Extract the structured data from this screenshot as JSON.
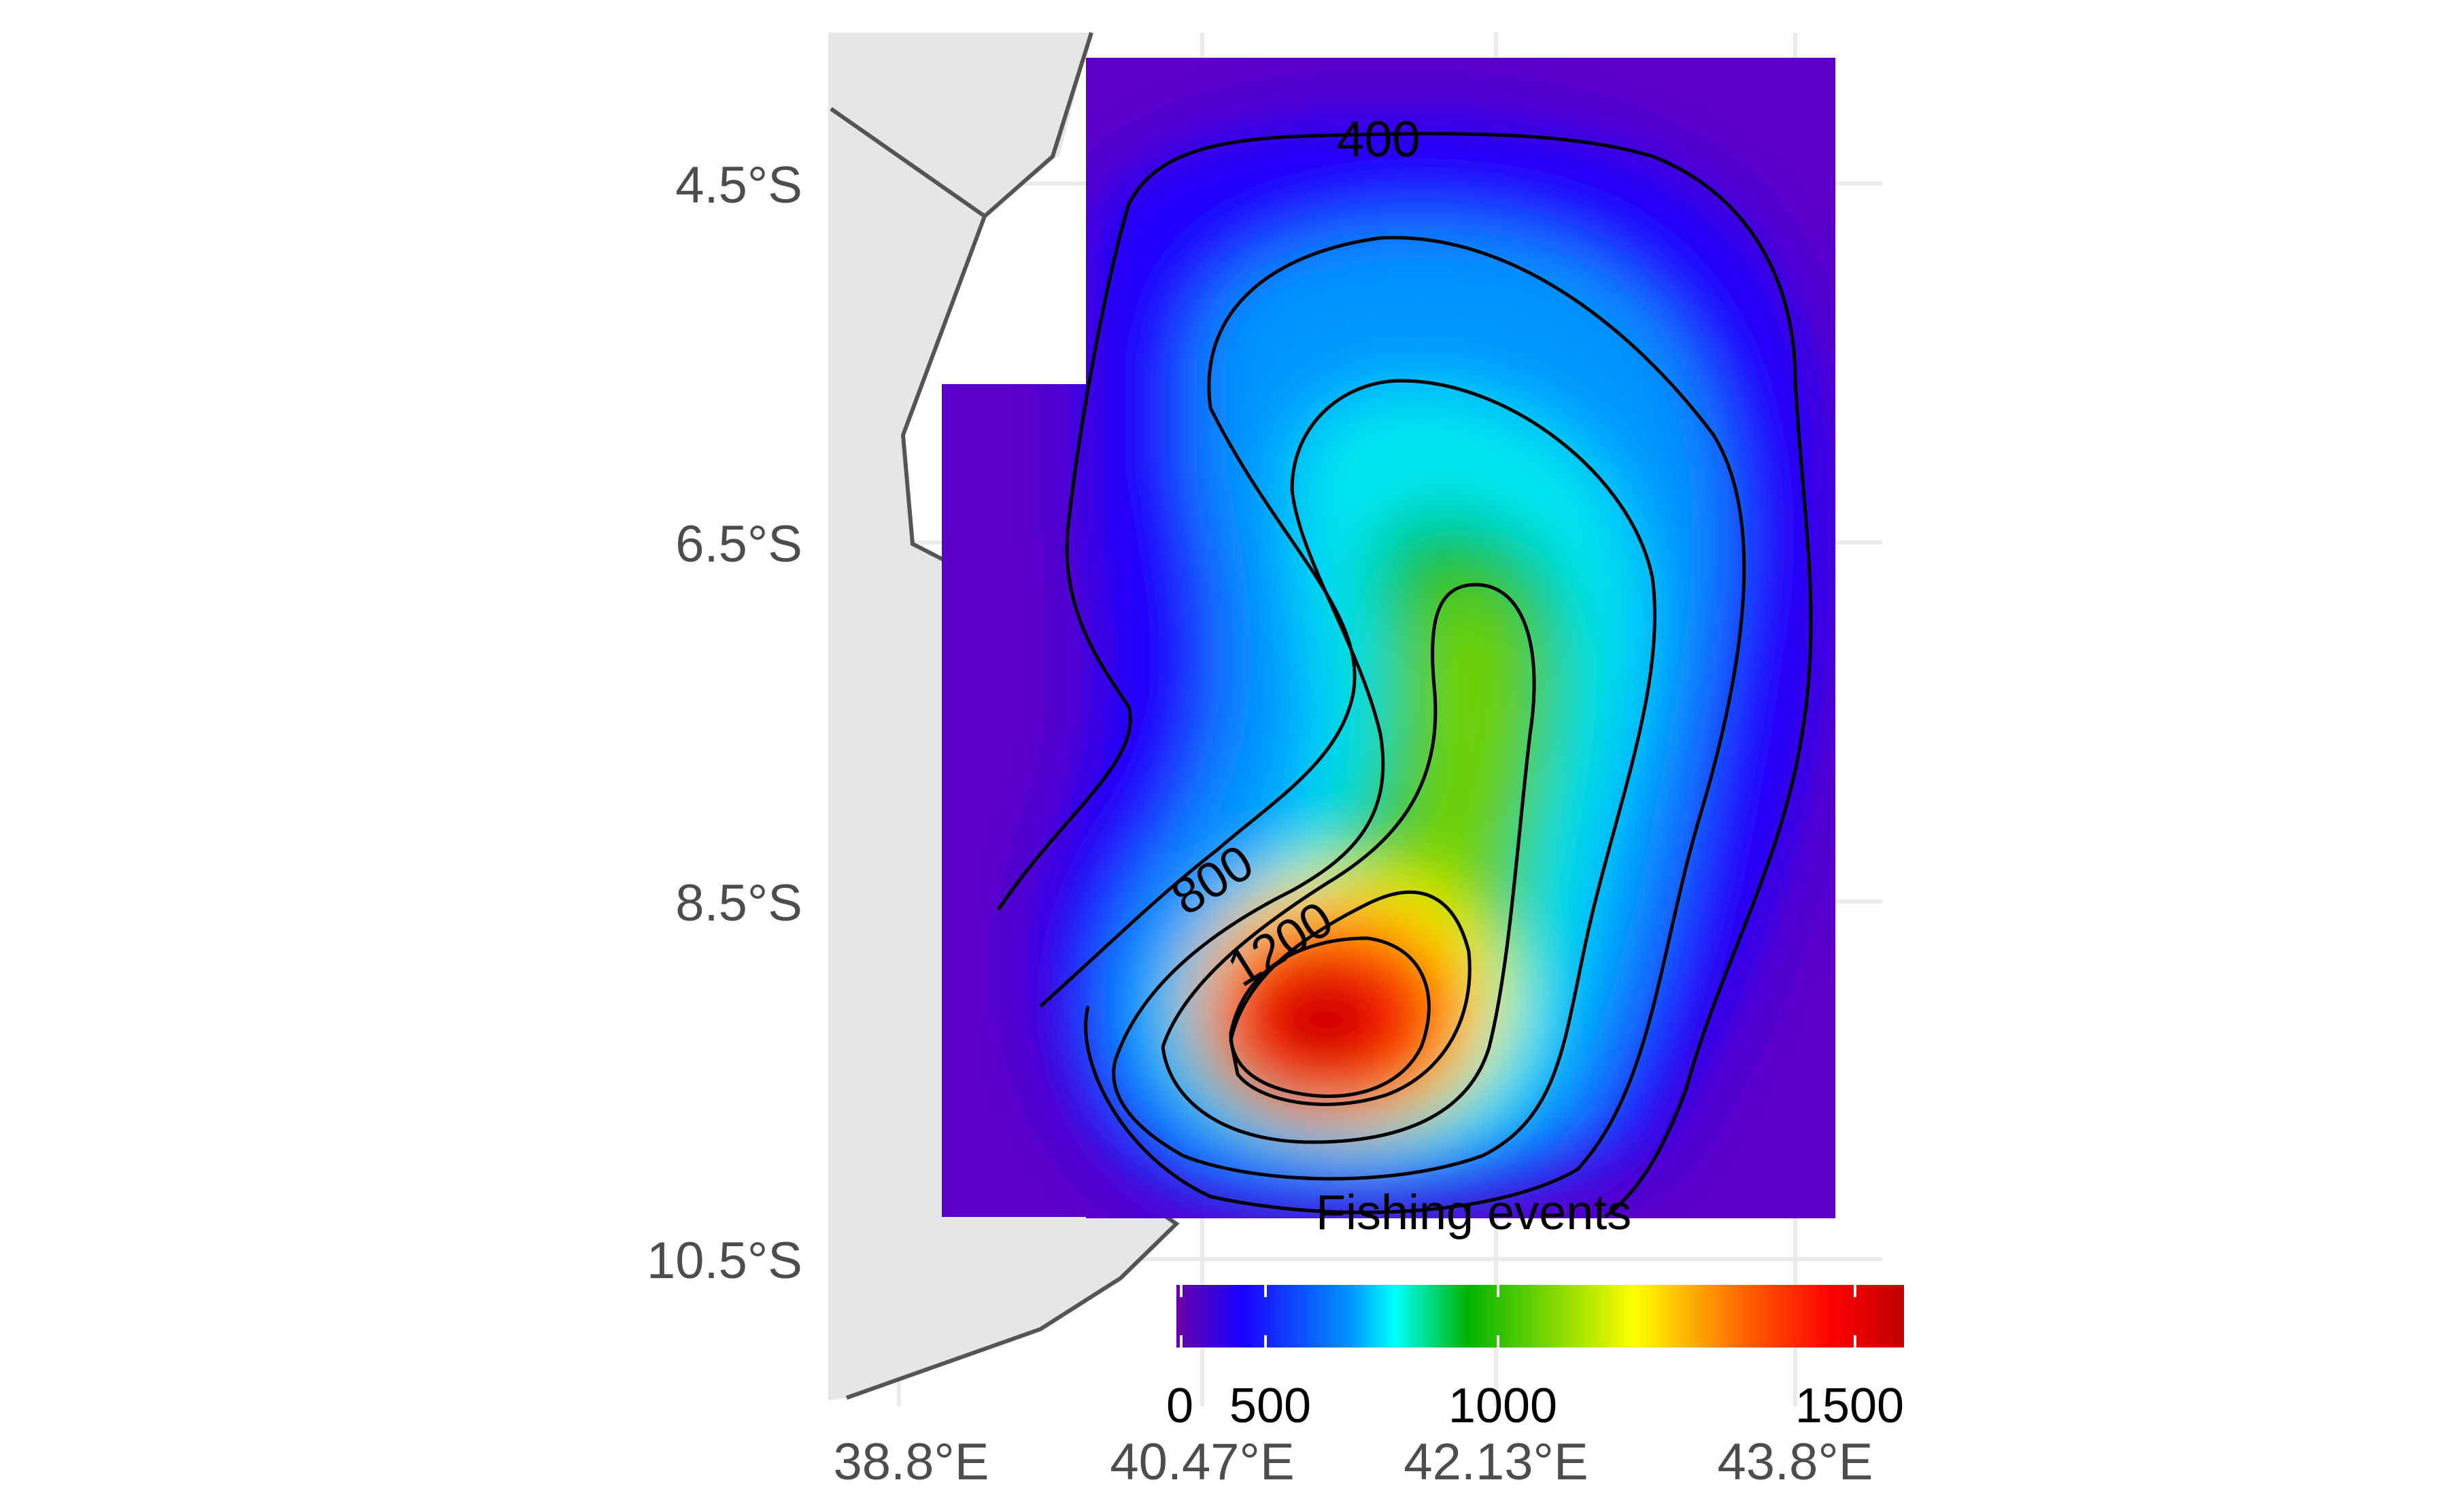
{
  "chart_data": {
    "type": "heatmap",
    "title": "",
    "xlabel": "",
    "ylabel": "",
    "x_ticks": [
      "38.8°E",
      "40.47°E",
      "42.13°E",
      "43.8°E"
    ],
    "y_ticks": [
      "4.5°S",
      "6.5°S",
      "8.5°S",
      "10.5°S"
    ],
    "xlim": [
      38.8,
      44.4
    ],
    "ylim": [
      -11.3,
      -3.6
    ],
    "grid": true,
    "contour_levels": [
      400,
      800,
      1200
    ],
    "contour_labels": [
      "400",
      "800",
      "1200"
    ],
    "legend": {
      "title": "Fishing events",
      "placement": "bottom",
      "ticks": [
        "0",
        "500",
        "1000",
        "1500"
      ],
      "range": [
        0,
        1600
      ],
      "colors": [
        "#6a00a8",
        "#0000ff",
        "#00c8ff",
        "#00ffff",
        "#00c800",
        "#a0e600",
        "#ffff00",
        "#ff8000",
        "#ff0000",
        "#c80000"
      ]
    },
    "peak_value": 1600,
    "land_color": "#e6e6e6",
    "coastline_color": "#555555"
  }
}
